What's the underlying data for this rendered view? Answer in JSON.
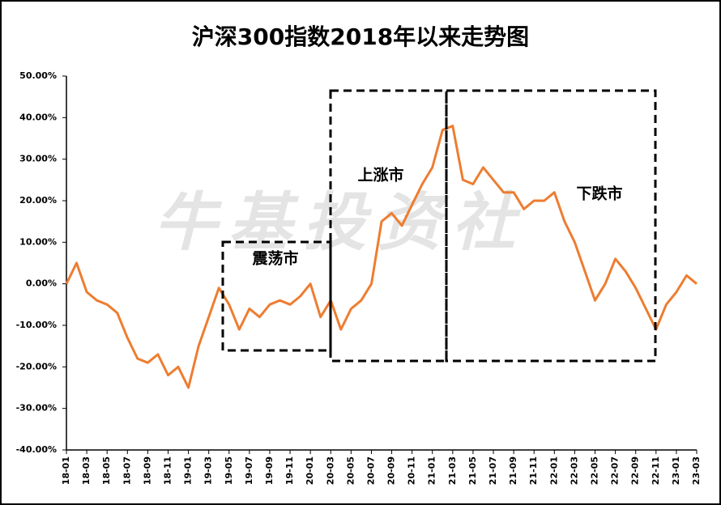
{
  "chart_data": {
    "type": "line",
    "title": "沪深300指数2018年以来走势图",
    "watermark": "牛基投资社",
    "annotations": [
      "震荡市",
      "上涨市",
      "下跌市"
    ],
    "categories": [
      "18-01",
      null,
      "18-03",
      null,
      "18-05",
      null,
      "18-07",
      null,
      "18-09",
      null,
      "18-11",
      null,
      "19-01",
      null,
      "19-03",
      null,
      "19-05",
      null,
      "19-07",
      null,
      "19-09",
      null,
      "19-11",
      null,
      "20-01",
      null,
      "20-03",
      null,
      "20-05",
      null,
      "20-07",
      null,
      "20-09",
      null,
      "20-11",
      null,
      "21-01",
      null,
      "21-03",
      null,
      "21-05",
      null,
      "21-07",
      null,
      "21-09",
      null,
      "21-11",
      null,
      "22-01",
      null,
      "22-03",
      null,
      "22-05",
      null,
      "22-07",
      null,
      "22-09",
      null,
      "22-11",
      null,
      "23-01",
      null,
      "23-03"
    ],
    "values": [
      0,
      5,
      -2,
      -4,
      -5,
      -7,
      -13,
      -18,
      -19,
      -17,
      -22,
      -20,
      -25,
      -15,
      -8,
      -1,
      -5,
      -11,
      -6,
      -8,
      -5,
      -4,
      -5,
      -3,
      0,
      -8,
      -4,
      -11,
      -6,
      -4,
      0,
      15,
      17,
      14,
      19,
      24,
      28,
      37,
      38,
      25,
      24,
      28,
      25,
      22,
      22,
      18,
      20,
      20,
      22,
      15,
      10,
      3,
      -4,
      0,
      6,
      3,
      -1,
      -6,
      -11,
      -5,
      -2,
      2,
      0
    ],
    "color": "#ed7d31",
    "ylim": [
      -40,
      50
    ],
    "yticks": [
      {
        "value": -40,
        "label": "-40.00%"
      },
      {
        "value": -30,
        "label": "-30.00%"
      },
      {
        "value": -20,
        "label": "-20.00%"
      },
      {
        "value": -10,
        "label": "-10.00%"
      },
      {
        "value": 0,
        "label": "0.00%"
      },
      {
        "value": 10,
        "label": "10.00%"
      },
      {
        "value": 20,
        "label": "20.00%"
      },
      {
        "value": 30,
        "label": "30.00%"
      },
      {
        "value": 40,
        "label": "40.00%"
      },
      {
        "value": 50,
        "label": "50.00%"
      }
    ],
    "grid": false
  }
}
